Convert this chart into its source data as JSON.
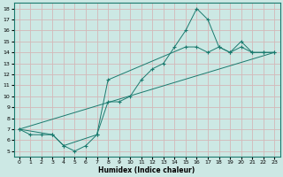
{
  "xlabel": "Humidex (Indice chaleur)",
  "bg_color": "#cce8e4",
  "grid_color": "#d4b8b8",
  "line_color": "#1a7a6e",
  "xlim": [
    -0.5,
    23.5
  ],
  "ylim": [
    4.5,
    18.5
  ],
  "xticks": [
    0,
    1,
    2,
    3,
    4,
    5,
    6,
    7,
    8,
    9,
    10,
    11,
    12,
    13,
    14,
    15,
    16,
    17,
    18,
    19,
    20,
    21,
    22,
    23
  ],
  "yticks": [
    5,
    6,
    7,
    8,
    9,
    10,
    11,
    12,
    13,
    14,
    15,
    16,
    17,
    18
  ],
  "line1_x": [
    0,
    1,
    2,
    3,
    4,
    5,
    6,
    7,
    8,
    9,
    10,
    11,
    12,
    13,
    14,
    15,
    16,
    17,
    18,
    19,
    20,
    21,
    22,
    23
  ],
  "line1_y": [
    7.0,
    6.5,
    6.5,
    6.5,
    5.5,
    5.0,
    5.5,
    6.5,
    9.5,
    9.5,
    10.0,
    11.5,
    12.5,
    13.0,
    14.5,
    16.0,
    18.0,
    17.0,
    14.5,
    14.0,
    15.0,
    14.0,
    14.0,
    14.0
  ],
  "line2_x": [
    0,
    3,
    4,
    7,
    8,
    15,
    16,
    17,
    18,
    19,
    20,
    21,
    22,
    23
  ],
  "line2_y": [
    7.0,
    6.5,
    5.5,
    6.5,
    11.5,
    14.5,
    14.5,
    14.0,
    14.5,
    14.0,
    14.5,
    14.0,
    14.0,
    14.0
  ],
  "line3_x": [
    0,
    23
  ],
  "line3_y": [
    7.0,
    14.0
  ]
}
